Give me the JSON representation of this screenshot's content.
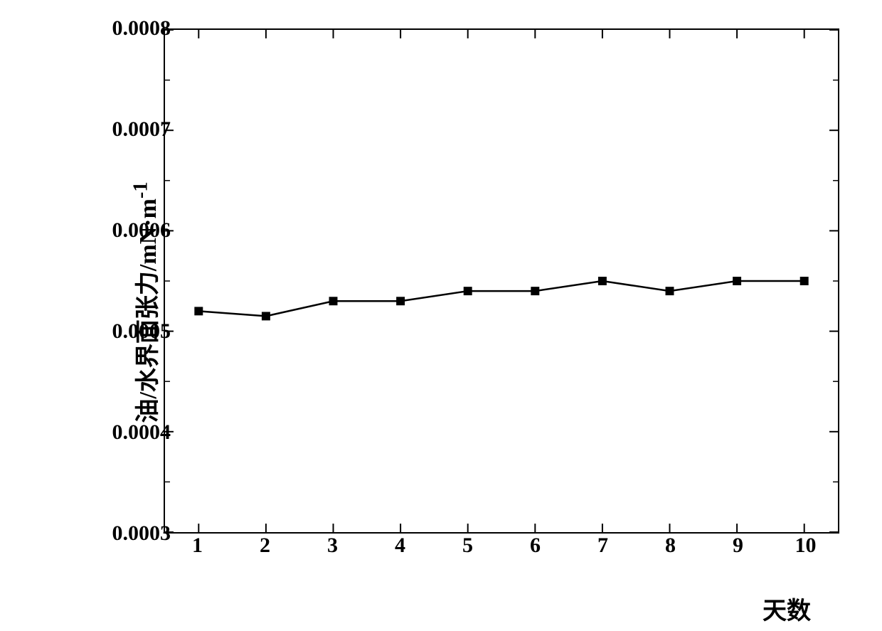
{
  "chart": {
    "type": "line",
    "x_values": [
      1,
      2,
      3,
      4,
      5,
      6,
      7,
      8,
      9,
      10
    ],
    "y_values": [
      0.00052,
      0.000515,
      0.00053,
      0.00053,
      0.00054,
      0.00054,
      0.00055,
      0.00054,
      0.00055,
      0.00055
    ],
    "xlabel": "天数",
    "ylabel": "油/水界面张力/mN·m⁻¹",
    "ylabel_parts": {
      "prefix": "油/水界面张力/mN·m",
      "superscript": "-1"
    },
    "xlim": [
      0.5,
      10.5
    ],
    "ylim": [
      0.0003,
      0.0008
    ],
    "x_ticks": [
      1,
      2,
      3,
      4,
      5,
      6,
      7,
      8,
      9,
      10
    ],
    "y_ticks": [
      0.0003,
      0.0004,
      0.0005,
      0.0006,
      0.0007,
      0.0008
    ],
    "y_tick_labels": [
      "0.0003",
      "0.0004",
      "0.0005",
      "0.0006",
      "0.0007",
      "0.0008"
    ],
    "x_tick_labels": [
      "1",
      "2",
      "3",
      "4",
      "5",
      "6",
      "7",
      "8",
      "9",
      "10"
    ],
    "y_minor_step": 5e-05,
    "line_color": "#000000",
    "line_width": 2.5,
    "marker_style": "square",
    "marker_size": 12,
    "marker_color": "#000000",
    "background_color": "#ffffff",
    "border_color": "#000000",
    "border_width": 2,
    "tick_direction": "in",
    "tick_major_length": 12,
    "tick_minor_length": 7,
    "label_fontsize": 34,
    "tick_fontsize": 30,
    "font_weight": "bold"
  }
}
